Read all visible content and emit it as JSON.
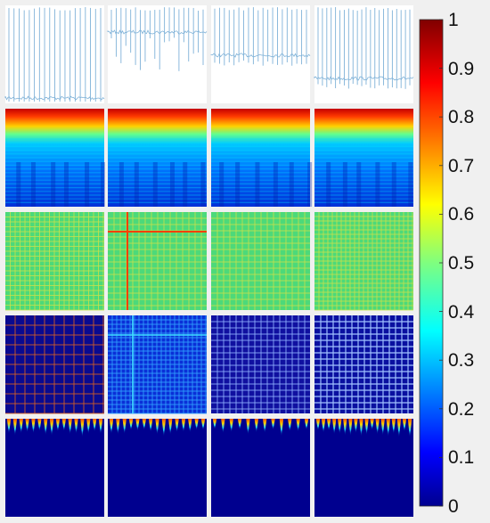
{
  "figure": {
    "rows": [
      {
        "kind": "waveform"
      },
      {
        "kind": "spectrogram"
      },
      {
        "kind": "recurrence-green"
      },
      {
        "kind": "recurrence-blue"
      },
      {
        "kind": "spike-field"
      }
    ],
    "columns": 4
  },
  "colorbar": {
    "colormap": "jet",
    "ticks": [
      "1",
      "0.9",
      "0.8",
      "0.7",
      "0.6",
      "0.5",
      "0.4",
      "0.3",
      "0.2",
      "0.1",
      "0"
    ],
    "tick_values": [
      1,
      0.9,
      0.8,
      0.7,
      0.6,
      0.5,
      0.4,
      0.3,
      0.2,
      0.1,
      0
    ]
  },
  "colors": {
    "background": "#f0f0f0",
    "waveform": "#7fb2d8",
    "jet_low": "#00008f",
    "jet_high": "#800000"
  }
}
